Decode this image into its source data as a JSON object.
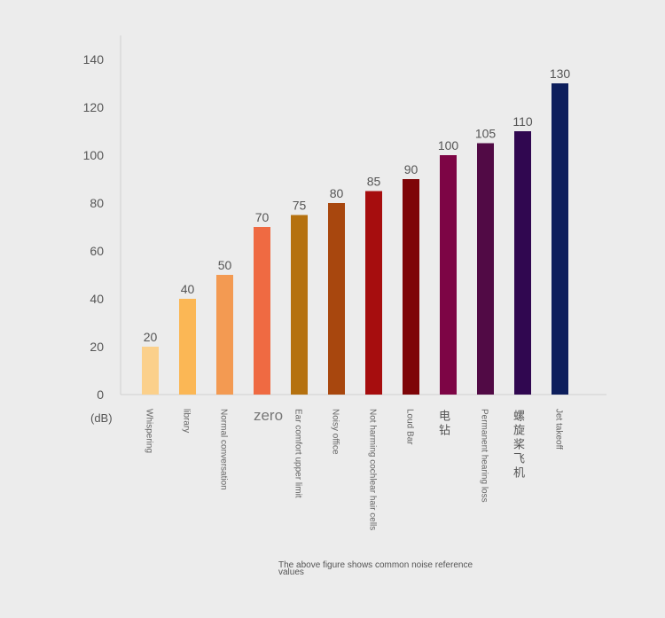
{
  "chart_data": {
    "type": "bar",
    "categories": [
      "Whispering",
      "library",
      "Normal conversation",
      "zero",
      "Ear comfort upper limit",
      "Noisy office",
      "Not harming cochlear hair cells",
      "Loud Bar",
      "电钻",
      "Permanent hearing loss",
      "螺旋桨飞机",
      "Jet takeoff"
    ],
    "values": [
      20,
      40,
      50,
      70,
      75,
      80,
      85,
      90,
      100,
      105,
      110,
      130
    ],
    "value_labels": [
      "20",
      "40",
      "50",
      "70",
      "75",
      "80",
      "85",
      "90",
      "100",
      "105",
      "110",
      "130"
    ],
    "ylim": [
      0,
      140
    ],
    "yticks": [
      "0",
      "20",
      "40",
      "60",
      "80",
      "100",
      "120",
      "140"
    ],
    "unit_label": "(dB)",
    "grid": false,
    "colors": [
      "#fbd08b",
      "#fbb755",
      "#f39a52",
      "#ef6a42",
      "#b5710f",
      "#a8470e",
      "#a60d0e",
      "#7e0508",
      "#7d0545",
      "#510a45",
      "#300750",
      "#0d1e5c"
    ]
  },
  "caption": "The above figure shows common noise reference values"
}
